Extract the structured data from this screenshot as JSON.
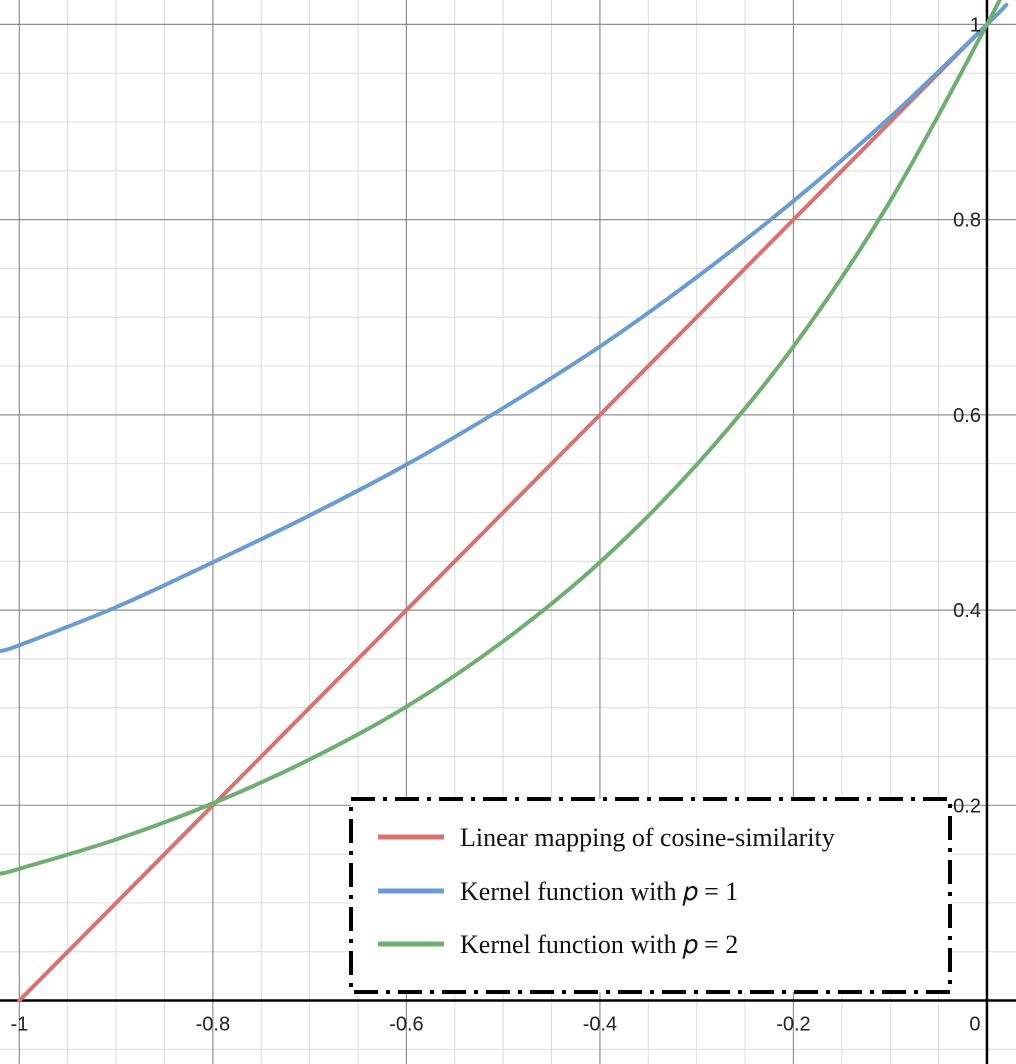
{
  "chart_data": {
    "type": "line",
    "title": "",
    "xlabel": "",
    "ylabel": "",
    "xlim": [
      -1.02,
      0.03
    ],
    "ylim": [
      -0.065,
      1.025
    ],
    "grid": true,
    "minor_grid": true,
    "x_ticks": [
      {
        "value": -1,
        "label": "-1"
      },
      {
        "value": -0.8,
        "label": "-0.8"
      },
      {
        "value": -0.6,
        "label": "-0.6"
      },
      {
        "value": -0.4,
        "label": "-0.4"
      },
      {
        "value": -0.2,
        "label": "-0.2"
      },
      {
        "value": 0,
        "label": "0"
      }
    ],
    "y_ticks": [
      {
        "value": 0.2,
        "label": "0.2"
      },
      {
        "value": 0.4,
        "label": "0.4"
      },
      {
        "value": 0.6,
        "label": "0.6"
      },
      {
        "value": 0.8,
        "label": "0.8"
      },
      {
        "value": 1,
        "label": "1"
      }
    ],
    "legend_position": "bottom-right",
    "legend_border": "dash-dot",
    "series": [
      {
        "name": "Linear mapping of cosine-similarity",
        "color": "#d9716f",
        "x": [
          -1.0,
          -0.9,
          -0.8,
          -0.7,
          -0.6,
          -0.5,
          -0.4,
          -0.3,
          -0.2,
          -0.1,
          0.0
        ],
        "y": [
          0.0,
          0.1,
          0.2,
          0.3,
          0.4,
          0.5,
          0.6,
          0.7,
          0.8,
          0.9,
          1.0
        ]
      },
      {
        "name": "Kernel function with 𝑝 = 1",
        "color": "#6a9bd1",
        "x": [
          -1.02,
          -1.0,
          -0.9,
          -0.8,
          -0.7,
          -0.6,
          -0.5,
          -0.4,
          -0.3,
          -0.2,
          -0.1,
          0.0,
          0.02
        ],
        "y": [
          0.358,
          0.364,
          0.403,
          0.449,
          0.497,
          0.549,
          0.607,
          0.67,
          0.741,
          0.819,
          0.905,
          1.0,
          1.02
        ]
      },
      {
        "name": "Kernel function with 𝑝 = 2",
        "color": "#6fae70",
        "x": [
          -1.02,
          -1.0,
          -0.9,
          -0.8,
          -0.7,
          -0.6,
          -0.5,
          -0.4,
          -0.3,
          -0.2,
          -0.1,
          0.0,
          0.02
        ],
        "y": [
          0.13,
          0.135,
          0.165,
          0.202,
          0.247,
          0.301,
          0.368,
          0.449,
          0.549,
          0.67,
          0.819,
          1.0,
          1.04
        ]
      }
    ]
  }
}
